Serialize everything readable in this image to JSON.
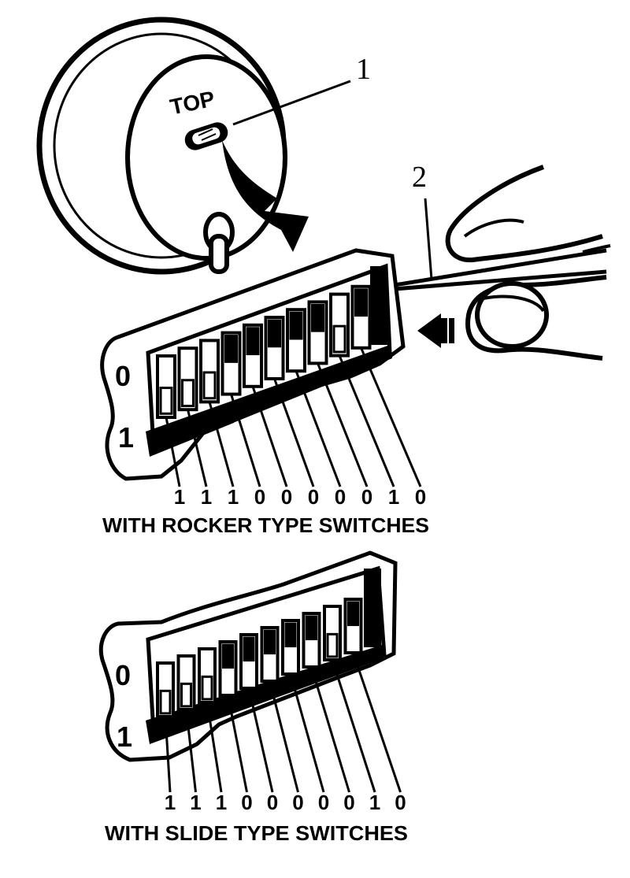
{
  "gauge": {
    "label": "TOP"
  },
  "callouts": [
    "1",
    "2"
  ],
  "rocker_panel": {
    "caption": "WITH ROCKER TYPE SWITCHES",
    "side_labels": [
      "0",
      "1"
    ],
    "settings": [
      "1",
      "1",
      "1",
      "0",
      "0",
      "0",
      "0",
      "0",
      "1",
      "0"
    ]
  },
  "slide_panel": {
    "caption": "WITH SLIDE TYPE SWITCHES",
    "side_labels": [
      "0",
      "1"
    ],
    "settings": [
      "1",
      "1",
      "1",
      "0",
      "0",
      "0",
      "0",
      "0",
      "1",
      "0"
    ]
  }
}
